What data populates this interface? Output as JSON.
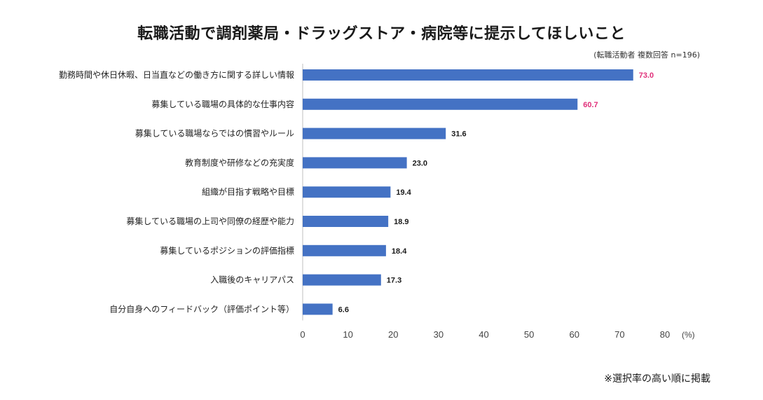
{
  "chart_data": {
    "type": "bar",
    "orientation": "horizontal",
    "title": "転職活動で調剤薬局・ドラッグストア・病院等に提示してほしいこと",
    "subtitle": "(転職活動者 複数回答 n=196)",
    "footnote": "※選択率の高い順に掲載",
    "xlabel": "",
    "x_unit_label": "(%)",
    "ylabel": "",
    "xlim": [
      0,
      80
    ],
    "x_ticks": [
      "0",
      "10",
      "20",
      "30",
      "40",
      "50",
      "60",
      "70",
      "80"
    ],
    "grid": false,
    "categories": [
      "勤務時間や休日休暇、日当直などの働き方に関する詳しい情報",
      "募集している職場の具体的な仕事内容",
      "募集している職場ならではの慣習やルール",
      "教育制度や研修などの充実度",
      "組織が目指す戦略や目標",
      "募集している職場の上司や同僚の経歴や能力",
      "募集しているポジションの評価指標",
      "入職後のキャリアパス",
      "自分自身へのフィードバック（評価ポイント等）"
    ],
    "values": [
      73.0,
      60.7,
      31.6,
      23.0,
      19.4,
      18.9,
      18.4,
      17.3,
      6.6
    ],
    "value_labels": [
      "73.0",
      "60.7",
      "31.6",
      "23.0",
      "19.4",
      "18.9",
      "18.4",
      "17.3",
      "6.6"
    ],
    "highlight_top": 2,
    "colors": {
      "bar": "#4472C4",
      "highlight_label": "#E0307A",
      "label": "#1a1a1a",
      "axis": "#bfbfbf"
    }
  }
}
